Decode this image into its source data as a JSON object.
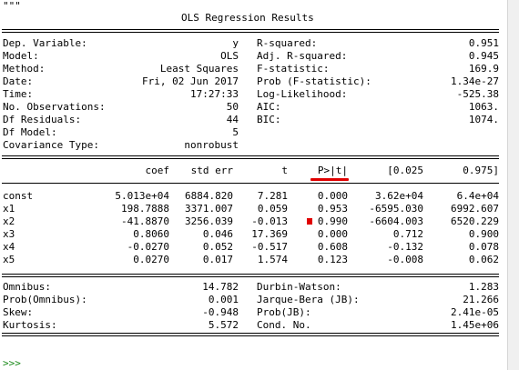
{
  "console": {
    "docstring_open": "\"\"\"",
    "title": "OLS Regression Results",
    "prompt": ">>>"
  },
  "summary_left": [
    {
      "label": "Dep. Variable:",
      "value": "y"
    },
    {
      "label": "Model:",
      "value": "OLS"
    },
    {
      "label": "Method:",
      "value": "Least Squares"
    },
    {
      "label": "Date:",
      "value": "Fri, 02 Jun 2017"
    },
    {
      "label": "Time:",
      "value": "17:27:33"
    },
    {
      "label": "No. Observations:",
      "value": "50"
    },
    {
      "label": "Df Residuals:",
      "value": "44"
    },
    {
      "label": "Df Model:",
      "value": "5"
    },
    {
      "label": "Covariance Type:",
      "value": "nonrobust"
    }
  ],
  "summary_right": [
    {
      "label": "R-squared:",
      "value": "0.951"
    },
    {
      "label": "Adj. R-squared:",
      "value": "0.945"
    },
    {
      "label": "F-statistic:",
      "value": "169.9"
    },
    {
      "label": "Prob (F-statistic):",
      "value": "1.34e-27"
    },
    {
      "label": "Log-Likelihood:",
      "value": "-525.38"
    },
    {
      "label": "AIC:",
      "value": "1063."
    },
    {
      "label": "BIC:",
      "value": "1074."
    }
  ],
  "coef_headers": [
    "coef",
    "std err",
    "t",
    "P>|t|",
    "[0.025",
    "0.975]"
  ],
  "coef_rows": [
    {
      "name": "const",
      "coef": "5.013e+04",
      "se": "6884.820",
      "t": "7.281",
      "p": "0.000",
      "lo": "3.62e+04",
      "hi": "6.4e+04"
    },
    {
      "name": "x1",
      "coef": "198.7888",
      "se": "3371.007",
      "t": "0.059",
      "p": "0.953",
      "lo": "-6595.030",
      "hi": "6992.607"
    },
    {
      "name": "x2",
      "coef": "-41.8870",
      "se": "3256.039",
      "t": "-0.013",
      "p": "0.990",
      "lo": "-6604.003",
      "hi": "6520.229"
    },
    {
      "name": "x3",
      "coef": "0.8060",
      "se": "0.046",
      "t": "17.369",
      "p": "0.000",
      "lo": "0.712",
      "hi": "0.900"
    },
    {
      "name": "x4",
      "coef": "-0.0270",
      "se": "0.052",
      "t": "-0.517",
      "p": "0.608",
      "lo": "-0.132",
      "hi": "0.078"
    },
    {
      "name": "x5",
      "coef": "0.0270",
      "se": "0.017",
      "t": "1.574",
      "p": "0.123",
      "lo": "-0.008",
      "hi": "0.062"
    }
  ],
  "diag_left": [
    {
      "label": "Omnibus:",
      "value": "14.782"
    },
    {
      "label": "Prob(Omnibus):",
      "value": "0.001"
    },
    {
      "label": "Skew:",
      "value": "-0.948"
    },
    {
      "label": "Kurtosis:",
      "value": "5.572"
    }
  ],
  "diag_right": [
    {
      "label": "Durbin-Watson:",
      "value": "1.283"
    },
    {
      "label": "Jarque-Bera (JB):",
      "value": "21.266"
    },
    {
      "label": "Prob(JB):",
      "value": "2.41e-05"
    },
    {
      "label": "Cond. No.",
      "value": "1.45e+06"
    }
  ],
  "colors": {
    "prompt": "#1a8a1a",
    "annotation": "#e00000"
  }
}
